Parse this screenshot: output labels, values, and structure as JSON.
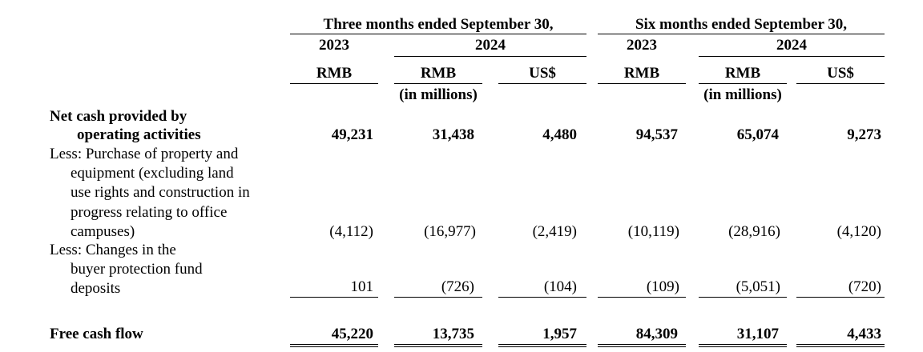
{
  "header": {
    "three_months": {
      "title": "Three months ended September 30,",
      "year_a": "2023",
      "year_b": "2024",
      "cur_a": "RMB",
      "cur_b": "RMB",
      "cur_c": "US$",
      "unit": "(in millions)"
    },
    "six_months": {
      "title": "Six months ended September 30,",
      "year_a": "2023",
      "year_b": "2024",
      "cur_a": "RMB",
      "cur_b": "RMB",
      "cur_c": "US$",
      "unit": "(in millions)"
    }
  },
  "rows": [
    {
      "label_lines": [
        "Net cash provided by",
        "operating activities"
      ],
      "values": [
        "49,231",
        "31,438",
        "4,480",
        "94,537",
        "65,074",
        "9,273"
      ]
    },
    {
      "label_lines": [
        "Less: Purchase of property and",
        "equipment (excluding land",
        "use rights and construction in",
        "progress relating to office",
        "campuses)"
      ],
      "values": [
        "(4,112)",
        "(16,977)",
        "(2,419)",
        "(10,119)",
        "(28,916)",
        "(4,120)"
      ]
    },
    {
      "label_lines": [
        "Less: Changes in the",
        "buyer protection fund",
        "deposits"
      ],
      "values": [
        "101",
        "(726)",
        "(104)",
        "(109)",
        "(5,051)",
        "(720)"
      ]
    },
    {
      "label_lines": [
        "Free cash flow"
      ],
      "values": [
        "45,220",
        "13,735",
        "1,957",
        "84,309",
        "31,107",
        "4,433"
      ]
    }
  ]
}
